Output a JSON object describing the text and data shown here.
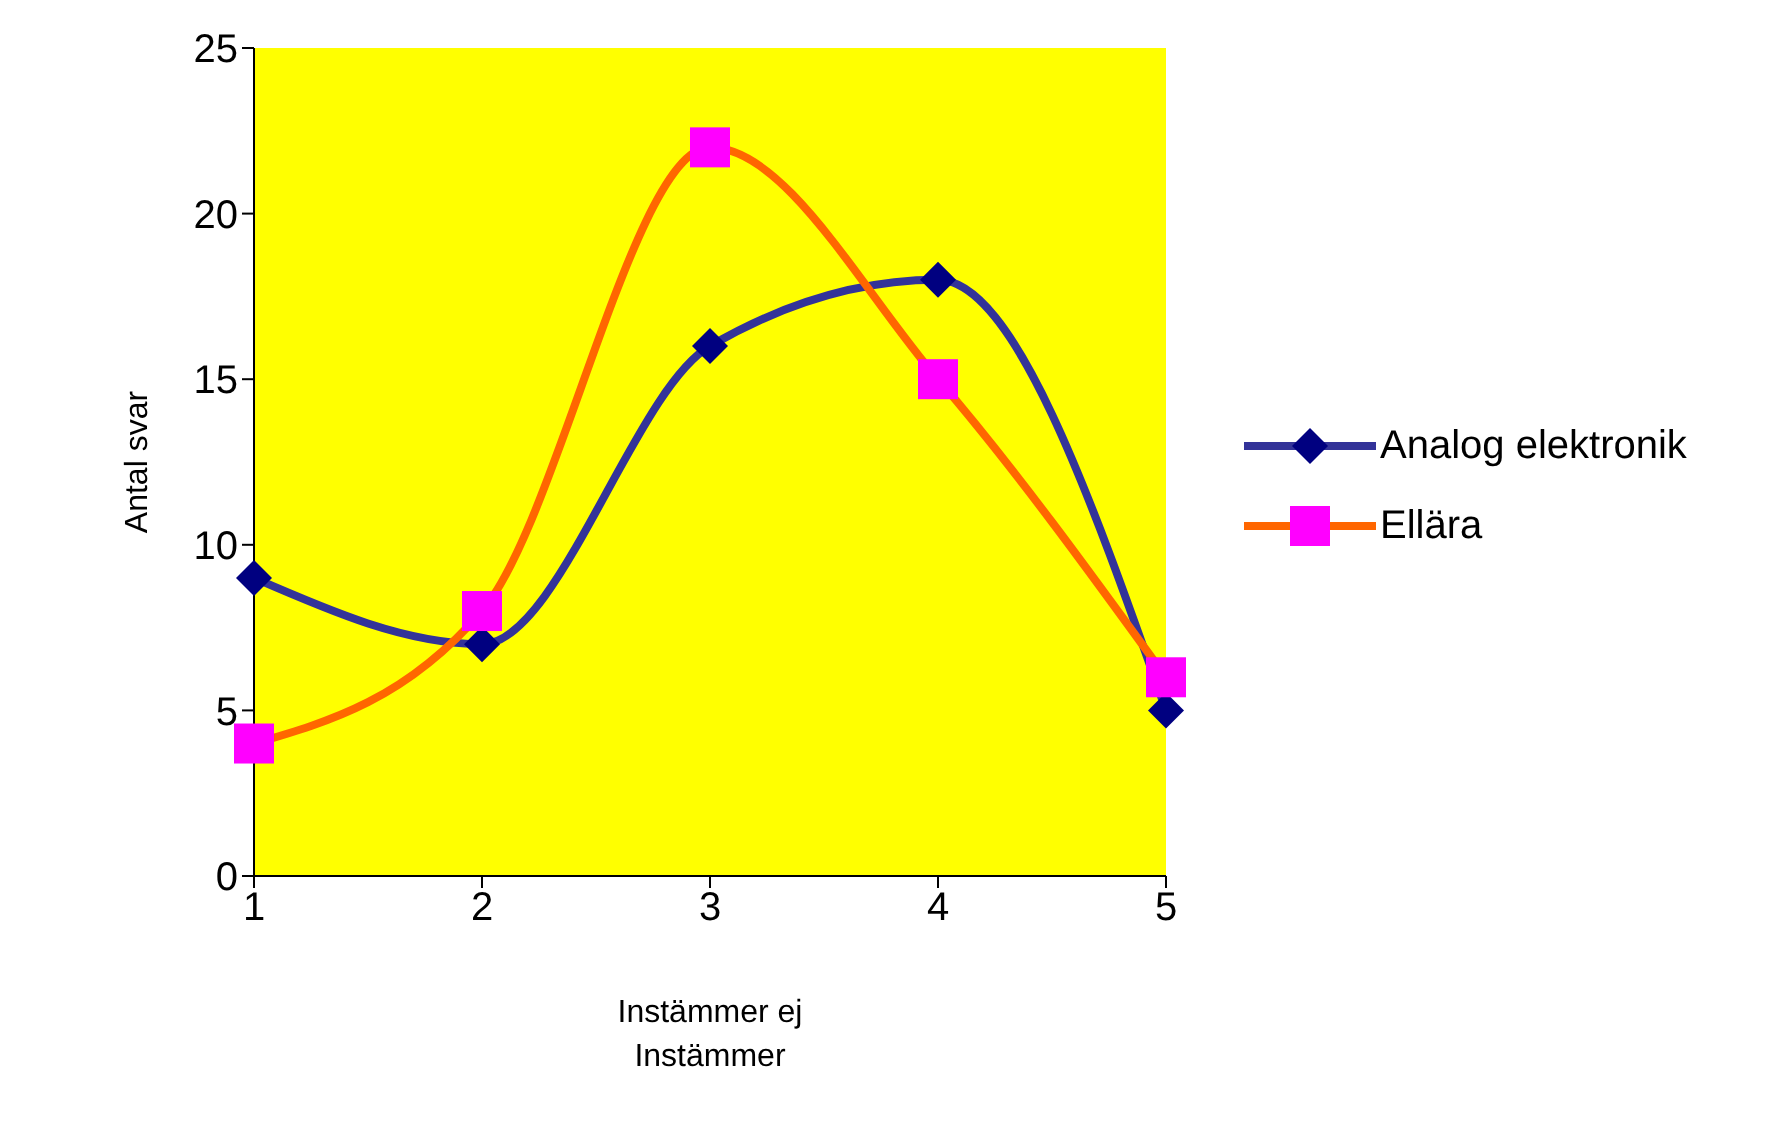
{
  "chart_data": {
    "type": "line",
    "xlabel": "Instämmer ej\nInstämmer",
    "ylabel": "Antal svar",
    "x": [
      1,
      2,
      3,
      4,
      5
    ],
    "xlim": [
      1,
      5
    ],
    "xticks": [
      1,
      2,
      3,
      4,
      5
    ],
    "ylim": [
      0,
      25
    ],
    "yticks": [
      0,
      5,
      10,
      15,
      20,
      25
    ],
    "grid": false,
    "legend": "right",
    "series": [
      {
        "name": "Analog elektronik",
        "color": "#333399",
        "colors": [
          "#000080",
          "#000080",
          "#000080",
          "#000080",
          "#000080"
        ],
        "marker": "diamond",
        "values": [
          9,
          7,
          16,
          18,
          5
        ]
      },
      {
        "name": "Ellära",
        "color": "#ff6600",
        "colors": [
          "#ff00ff",
          "#ff00ff",
          "#ff00ff",
          "#ff00ff",
          "#ff00ff"
        ],
        "marker": "square",
        "values": [
          4,
          8,
          22,
          15,
          6
        ]
      }
    ]
  }
}
